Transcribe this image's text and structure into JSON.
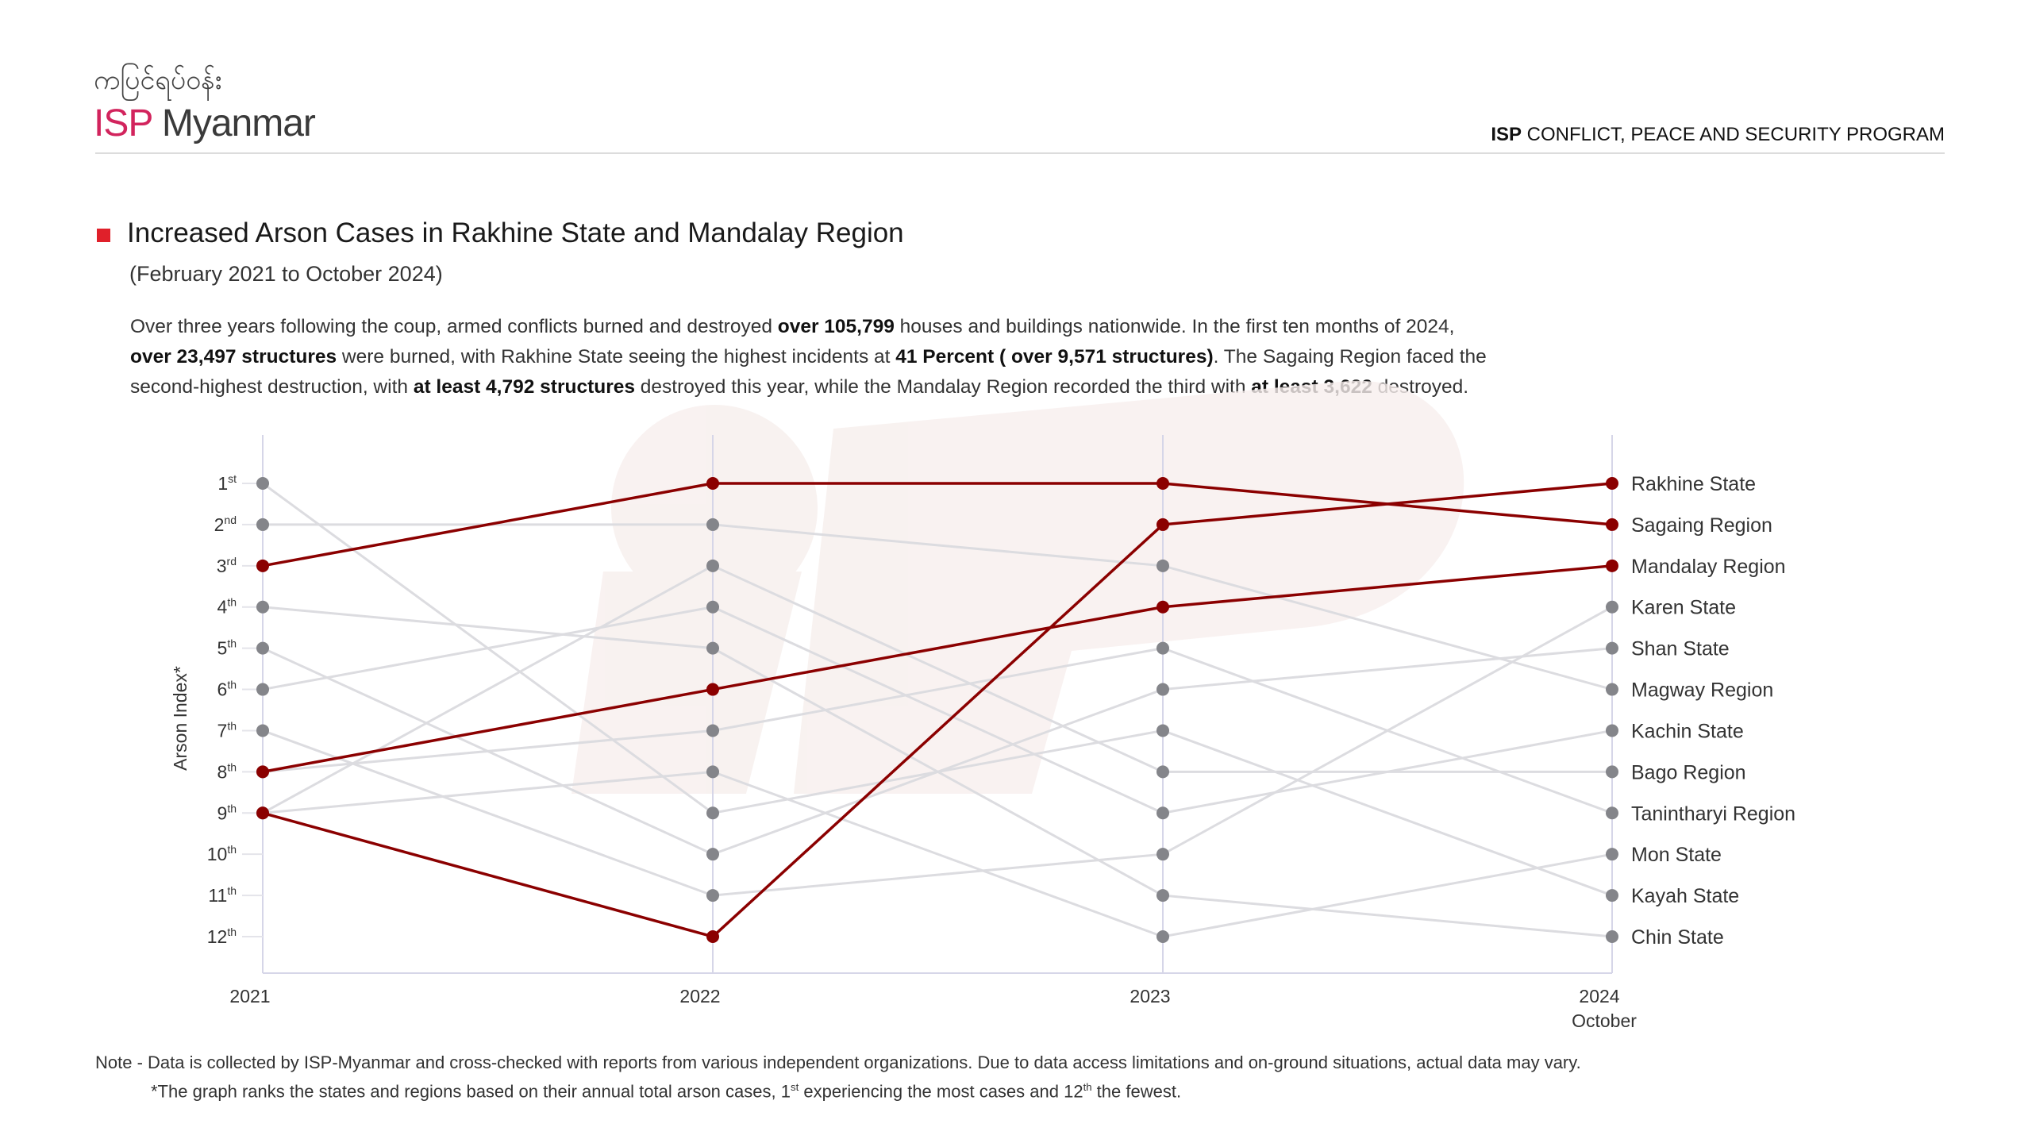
{
  "header": {
    "logo_myanmar": "ကပြင်ရပ်ဝန်း",
    "logo_isp": "ISP",
    "logo_name": "Myanmar",
    "program_bold": "ISP",
    "program_rest": " CONFLICT, PEACE AND SECURITY PROGRAM"
  },
  "title": "Increased Arson Cases in Rakhine State and Mandalay Region",
  "subtitle": "(February 2021 to October 2024)",
  "paragraph": [
    [
      {
        "t": "Over three years following the coup, armed conflicts burned and destroyed ",
        "b": false
      },
      {
        "t": "over 105,799",
        "b": true
      },
      {
        "t": " houses and buildings nationwide. In the first ten months of 2024,",
        "b": false
      }
    ],
    [
      {
        "t": "over 23,497 structures",
        "b": true
      },
      {
        "t": " were burned, with Rakhine State seeing the highest incidents at ",
        "b": false
      },
      {
        "t": "41 Percent ( over 9,571 structures)",
        "b": true
      },
      {
        "t": ". The Sagaing Region faced the",
        "b": false
      }
    ],
    [
      {
        "t": "second-highest destruction, with ",
        "b": false
      },
      {
        "t": "at least 4,792 structures",
        "b": true
      },
      {
        "t": " destroyed this year, while the Mandalay Region recorded the third with ",
        "b": false
      },
      {
        "t": "at least 3,622",
        "b": true
      },
      {
        "t": " destroyed.",
        "b": false
      }
    ]
  ],
  "chart_data": {
    "type": "line",
    "subtype": "bump",
    "ylabel": "Arson Index*",
    "x": [
      "2021",
      "2022",
      "2023",
      "2024"
    ],
    "x_sublabels": [
      "",
      "",
      "",
      "October"
    ],
    "y_ticks": [
      {
        "n": "1",
        "s": "st"
      },
      {
        "n": "2",
        "s": "nd"
      },
      {
        "n": "3",
        "s": "rd"
      },
      {
        "n": "4",
        "s": "th"
      },
      {
        "n": "5",
        "s": "th"
      },
      {
        "n": "6",
        "s": "th"
      },
      {
        "n": "7",
        "s": "th"
      },
      {
        "n": "8",
        "s": "th"
      },
      {
        "n": "9",
        "s": "th"
      },
      {
        "n": "10",
        "s": "th"
      },
      {
        "n": "11",
        "s": "th"
      },
      {
        "n": "12",
        "s": "th"
      }
    ],
    "ylim": [
      1,
      12
    ],
    "y_inverted": true,
    "highlight_color": "#8b0000",
    "base_color": "#dcdce0",
    "marker_color": "#84858a",
    "series": [
      {
        "name": "Rakhine State",
        "values": [
          9,
          12,
          2,
          1
        ],
        "highlight": true
      },
      {
        "name": "Sagaing Region",
        "values": [
          3,
          1,
          1,
          2
        ],
        "highlight": true
      },
      {
        "name": "Mandalay Region",
        "values": [
          8,
          6,
          4,
          3
        ],
        "highlight": true
      },
      {
        "name": "Karen State",
        "values": [
          7,
          11,
          10,
          4
        ],
        "highlight": false
      },
      {
        "name": "Shan State",
        "values": [
          5,
          10,
          6,
          5
        ],
        "highlight": false
      },
      {
        "name": "Magway Region",
        "values": [
          2,
          2,
          3,
          6
        ],
        "highlight": false
      },
      {
        "name": "Kachin State",
        "values": [
          6,
          4,
          9,
          7
        ],
        "highlight": false
      },
      {
        "name": "Bago Region",
        "values": [
          9,
          3,
          8,
          8
        ],
        "highlight": false
      },
      {
        "name": "Tanintharyi Region",
        "values": [
          8,
          7,
          5,
          9
        ],
        "highlight": false
      },
      {
        "name": "Mon State",
        "values": [
          9,
          8,
          12,
          10
        ],
        "highlight": false
      },
      {
        "name": "Kayah State",
        "values": [
          1,
          9,
          7,
          11
        ],
        "highlight": false
      },
      {
        "name": "Chin State",
        "values": [
          4,
          5,
          11,
          12
        ],
        "highlight": false
      }
    ]
  },
  "note": {
    "line1": "Note - Data is collected by ISP-Myanmar and cross-checked with reports from various independent organizations. Due to data access limitations and on-ground situations, actual data may vary.",
    "line2_a": "*The graph ranks the states and regions based on their annual total arson cases, 1",
    "line2_sup1": "st",
    "line2_b": " experiencing the most cases and 12",
    "line2_sup2": "th",
    "line2_c": " the fewest."
  }
}
